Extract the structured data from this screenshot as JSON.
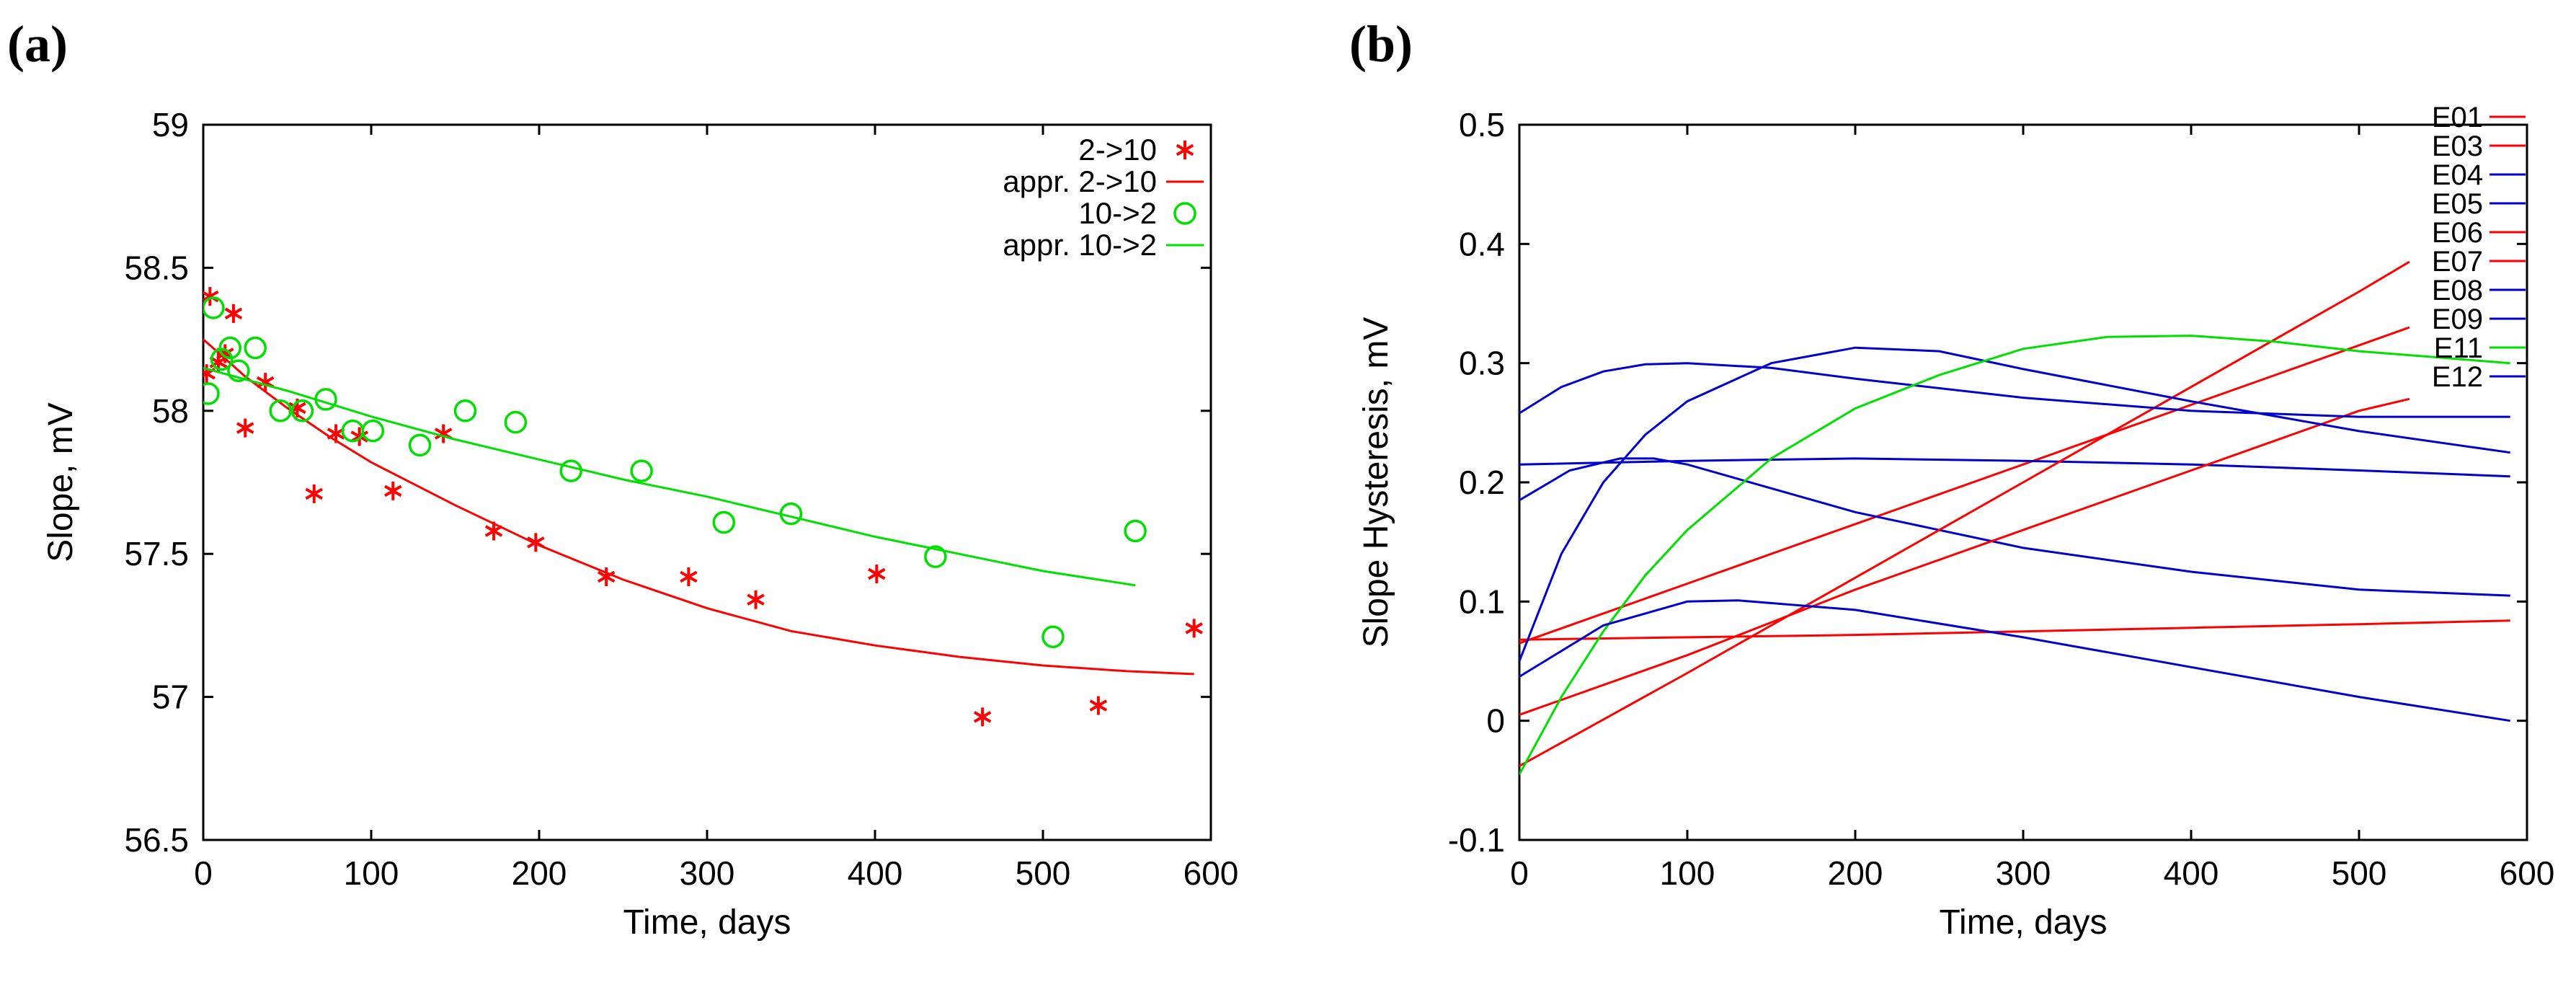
{
  "chart_data": [
    {
      "panel_label": "(a)",
      "type": "scatter",
      "xlabel": "Time, days",
      "ylabel": "Slope, mV",
      "xlim": [
        0,
        600
      ],
      "ylim": [
        56.5,
        59
      ],
      "xticks": [
        0,
        100,
        200,
        300,
        400,
        500,
        600
      ],
      "yticks": [
        56.5,
        57,
        57.5,
        58,
        58.5,
        59
      ],
      "ytick_labels": [
        "56.5",
        "57",
        "57.5",
        "58",
        "58.5",
        "59"
      ],
      "legend_position": "top-right",
      "series": [
        {
          "name": "2->10",
          "kind": "markers",
          "marker": "asterisk",
          "color": "#ff0000",
          "points": [
            [
              2,
              58.13
            ],
            [
              4,
              58.4
            ],
            [
              9,
              58.17
            ],
            [
              13,
              58.2
            ],
            [
              18,
              58.34
            ],
            [
              25,
              57.94
            ],
            [
              37,
              58.1
            ],
            [
              56,
              58.01
            ],
            [
              66,
              57.71
            ],
            [
              79,
              57.92
            ],
            [
              93,
              57.91
            ],
            [
              113,
              57.72
            ],
            [
              143,
              57.92
            ],
            [
              173,
              57.58
            ],
            [
              198,
              57.54
            ],
            [
              240,
              57.42
            ],
            [
              289,
              57.42
            ],
            [
              329,
              57.34
            ],
            [
              401,
              57.43
            ],
            [
              464,
              56.93
            ],
            [
              533,
              56.97
            ],
            [
              590,
              57.24
            ]
          ]
        },
        {
          "name": "appr. 2->10",
          "kind": "line",
          "color": "#ff0000",
          "points": [
            [
              0,
              58.25
            ],
            [
              25,
              58.12
            ],
            [
              50,
              58.01
            ],
            [
              75,
              57.91
            ],
            [
              100,
              57.82
            ],
            [
              150,
              57.67
            ],
            [
              200,
              57.53
            ],
            [
              250,
              57.41
            ],
            [
              300,
              57.31
            ],
            [
              350,
              57.23
            ],
            [
              400,
              57.18
            ],
            [
              450,
              57.14
            ],
            [
              500,
              57.11
            ],
            [
              550,
              57.09
            ],
            [
              590,
              57.08
            ]
          ]
        },
        {
          "name": "10->2",
          "kind": "markers",
          "marker": "circle",
          "color": "#00e000",
          "points": [
            [
              3,
              58.06
            ],
            [
              6,
              58.36
            ],
            [
              11,
              58.18
            ],
            [
              16,
              58.22
            ],
            [
              21,
              58.14
            ],
            [
              31,
              58.22
            ],
            [
              46,
              58.0
            ],
            [
              59,
              58.0
            ],
            [
              73,
              58.04
            ],
            [
              89,
              57.93
            ],
            [
              101,
              57.93
            ],
            [
              129,
              57.88
            ],
            [
              156,
              58.0
            ],
            [
              186,
              57.96
            ],
            [
              219,
              57.79
            ],
            [
              261,
              57.79
            ],
            [
              310,
              57.61
            ],
            [
              350,
              57.64
            ],
            [
              436,
              57.49
            ],
            [
              506,
              57.21
            ],
            [
              555,
              57.58
            ]
          ]
        },
        {
          "name": "appr. 10->2",
          "kind": "line",
          "color": "#00e000",
          "points": [
            [
              0,
              58.15
            ],
            [
              50,
              58.07
            ],
            [
              100,
              57.98
            ],
            [
              150,
              57.9
            ],
            [
              200,
              57.83
            ],
            [
              250,
              57.76
            ],
            [
              300,
              57.7
            ],
            [
              350,
              57.63
            ],
            [
              400,
              57.56
            ],
            [
              450,
              57.5
            ],
            [
              500,
              57.44
            ],
            [
              555,
              57.39
            ]
          ]
        }
      ]
    },
    {
      "panel_label": "(b)",
      "type": "line",
      "xlabel": "Time, days",
      "ylabel": "Slope Hysteresis, mV",
      "xlim": [
        0,
        600
      ],
      "ylim": [
        -0.1,
        0.5
      ],
      "xticks": [
        0,
        100,
        200,
        300,
        400,
        500,
        600
      ],
      "yticks": [
        -0.1,
        0,
        0.1,
        0.2,
        0.3,
        0.4,
        0.5
      ],
      "ytick_labels": [
        "-0.1",
        "0",
        "0.1",
        "0.2",
        "0.3",
        "0.4",
        "0.5"
      ],
      "legend_position": "top-right",
      "series": [
        {
          "name": "E01",
          "color": "#ff0000",
          "points": [
            [
              0,
              0.068
            ],
            [
              100,
              0.07
            ],
            [
              200,
              0.072
            ],
            [
              300,
              0.075
            ],
            [
              400,
              0.078
            ],
            [
              500,
              0.081
            ],
            [
              590,
              0.084
            ]
          ]
        },
        {
          "name": "E03",
          "color": "#ff0000",
          "points": [
            [
              0,
              0.065
            ],
            [
              100,
              0.115
            ],
            [
              200,
              0.165
            ],
            [
              300,
              0.215
            ],
            [
              400,
              0.265
            ],
            [
              500,
              0.315
            ],
            [
              530,
              0.33
            ]
          ]
        },
        {
          "name": "E04",
          "color": "#0000cc",
          "points": [
            [
              0,
              0.215
            ],
            [
              100,
              0.218
            ],
            [
              200,
              0.22
            ],
            [
              300,
              0.218
            ],
            [
              400,
              0.215
            ],
            [
              500,
              0.21
            ],
            [
              590,
              0.205
            ]
          ]
        },
        {
          "name": "E05",
          "color": "#0000cc",
          "points": [
            [
              0,
              0.185
            ],
            [
              30,
              0.21
            ],
            [
              60,
              0.22
            ],
            [
              80,
              0.22
            ],
            [
              100,
              0.215
            ],
            [
              150,
              0.195
            ],
            [
              200,
              0.175
            ],
            [
              300,
              0.145
            ],
            [
              400,
              0.125
            ],
            [
              500,
              0.11
            ],
            [
              590,
              0.105
            ]
          ]
        },
        {
          "name": "E06",
          "color": "#ff0000",
          "points": [
            [
              0,
              -0.038
            ],
            [
              100,
              0.04
            ],
            [
              200,
              0.12
            ],
            [
              300,
              0.2
            ],
            [
              400,
              0.28
            ],
            [
              500,
              0.36
            ],
            [
              530,
              0.385
            ]
          ]
        },
        {
          "name": "E07",
          "color": "#ff0000",
          "points": [
            [
              0,
              0.005
            ],
            [
              100,
              0.055
            ],
            [
              200,
              0.11
            ],
            [
              300,
              0.16
            ],
            [
              400,
              0.21
            ],
            [
              500,
              0.26
            ],
            [
              530,
              0.27
            ]
          ]
        },
        {
          "name": "E08",
          "color": "#0000cc",
          "points": [
            [
              0,
              0.258
            ],
            [
              25,
              0.28
            ],
            [
              50,
              0.293
            ],
            [
              75,
              0.299
            ],
            [
              100,
              0.3
            ],
            [
              150,
              0.296
            ],
            [
              200,
              0.287
            ],
            [
              300,
              0.271
            ],
            [
              400,
              0.26
            ],
            [
              500,
              0.255
            ],
            [
              590,
              0.255
            ]
          ]
        },
        {
          "name": "E09",
          "color": "#0000cc",
          "points": [
            [
              0,
              0.05
            ],
            [
              25,
              0.14
            ],
            [
              50,
              0.2
            ],
            [
              75,
              0.24
            ],
            [
              100,
              0.268
            ],
            [
              150,
              0.3
            ],
            [
              200,
              0.313
            ],
            [
              250,
              0.31
            ],
            [
              300,
              0.295
            ],
            [
              400,
              0.268
            ],
            [
              500,
              0.243
            ],
            [
              590,
              0.225
            ]
          ]
        },
        {
          "name": "E11",
          "color": "#00e000",
          "points": [
            [
              0,
              -0.045
            ],
            [
              25,
              0.02
            ],
            [
              50,
              0.075
            ],
            [
              75,
              0.122
            ],
            [
              100,
              0.16
            ],
            [
              150,
              0.22
            ],
            [
              200,
              0.262
            ],
            [
              250,
              0.29
            ],
            [
              300,
              0.312
            ],
            [
              350,
              0.322
            ],
            [
              400,
              0.323
            ],
            [
              450,
              0.318
            ],
            [
              500,
              0.31
            ],
            [
              590,
              0.3
            ]
          ]
        },
        {
          "name": "E12",
          "color": "#0000cc",
          "points": [
            [
              0,
              0.037
            ],
            [
              50,
              0.08
            ],
            [
              100,
              0.1
            ],
            [
              130,
              0.101
            ],
            [
              200,
              0.093
            ],
            [
              300,
              0.07
            ],
            [
              400,
              0.045
            ],
            [
              500,
              0.02
            ],
            [
              590,
              0.0
            ]
          ]
        }
      ]
    }
  ]
}
